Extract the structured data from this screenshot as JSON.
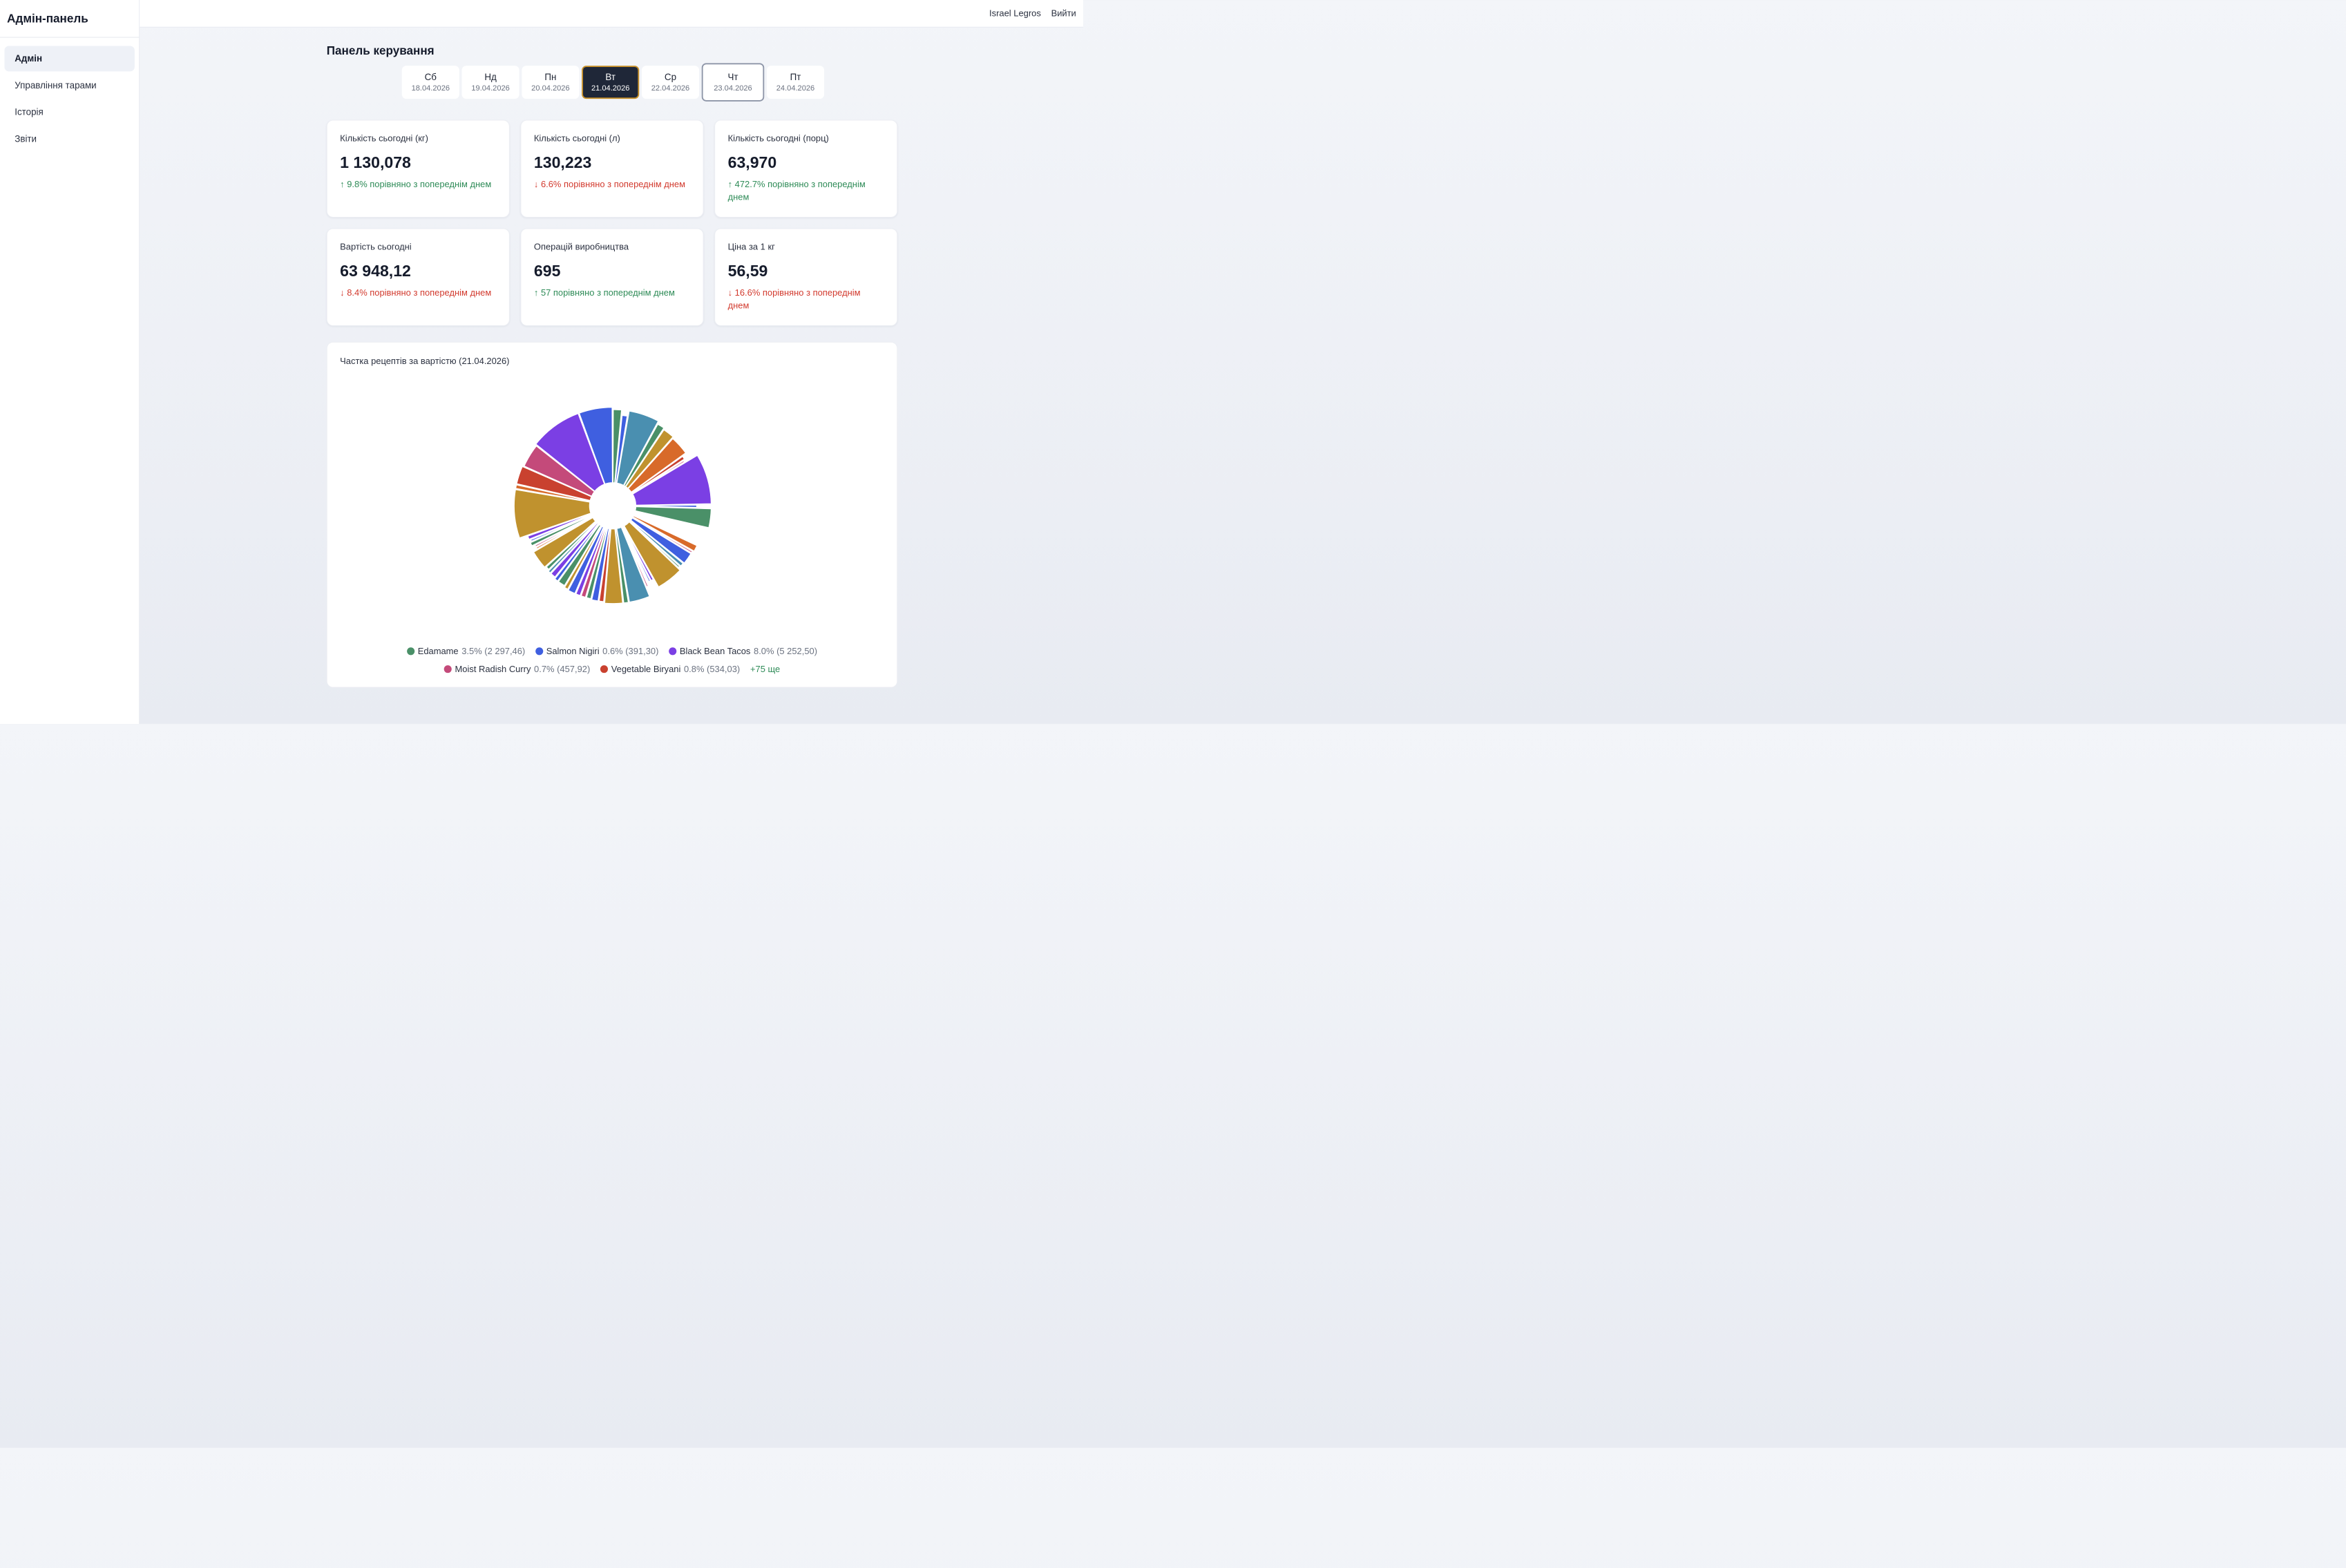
{
  "app": {
    "title": "Адмін-панель"
  },
  "sidebar": {
    "items": [
      {
        "label": "Адмін",
        "active": true
      },
      {
        "label": "Управління тарами"
      },
      {
        "label": "Історія"
      },
      {
        "label": "Звіти"
      }
    ]
  },
  "header": {
    "user": "Israel Legros",
    "logout": "Вийти"
  },
  "page": {
    "title": "Панель керування"
  },
  "days": [
    {
      "name": "Сб",
      "date": "18.04.2026"
    },
    {
      "name": "Нд",
      "date": "19.04.2026"
    },
    {
      "name": "Пн",
      "date": "20.04.2026"
    },
    {
      "name": "Вт",
      "date": "21.04.2026",
      "selected": true
    },
    {
      "name": "Ср",
      "date": "22.04.2026"
    },
    {
      "name": "Чт",
      "date": "23.04.2026",
      "today": true
    },
    {
      "name": "Пт",
      "date": "24.04.2026"
    }
  ],
  "cards": [
    {
      "label": "Кількість сьогодні (кг)",
      "value": "1 130,078",
      "delta": "↑ 9.8% порівняно з попереднім днем",
      "trend": "up"
    },
    {
      "label": "Кількість сьогодні (л)",
      "value": "130,223",
      "delta": "↓ 6.6% порівняно з попереднім днем",
      "trend": "down"
    },
    {
      "label": "Кількість сьогодні (порц)",
      "value": "63,970",
      "delta": "↑ 472.7% порівняно з попереднім днем",
      "trend": "up"
    },
    {
      "label": "Вартість сьогодні",
      "value": "63 948,12",
      "delta": "↓ 8.4% порівняно з попереднім днем",
      "trend": "down"
    },
    {
      "label": "Операцій виробництва",
      "value": "695",
      "delta": "↑ 57 порівняно з попереднім днем",
      "trend": "up"
    },
    {
      "label": "Ціна за 1 кг",
      "value": "56,59",
      "delta": "↓ 16.6% порівняно з попереднім днем",
      "trend": "down"
    }
  ],
  "chart": {
    "title": "Частка рецептів за вартістю (21.04.2026)",
    "legend": [
      {
        "name": "Edamame",
        "meta": "3.5% (2 297,46)",
        "color": "#4a9068"
      },
      {
        "name": "Salmon Nigiri",
        "meta": "0.6% (391,30)",
        "color": "#3f5fe0"
      },
      {
        "name": "Black Bean Tacos",
        "meta": "8.0% (5 252,50)",
        "color": "#7b3fe4"
      },
      {
        "name": "Moist Radish Curry",
        "meta": "0.7% (457,92)",
        "color": "#c44a7a"
      },
      {
        "name": "Vegetable Biryani",
        "meta": "0.8% (534,03)",
        "color": "#c9412f"
      }
    ],
    "more": "+75 ще"
  },
  "chart_data": {
    "type": "pie",
    "title": "Частка рецептів за вартістю (21.04.2026)",
    "categories": [
      "Edamame",
      "Salmon Nigiri",
      "Black Bean Tacos",
      "Moist Radish Curry",
      "Vegetable Biryani"
    ],
    "values": [
      3.5,
      0.6,
      8.0,
      0.7,
      0.8
    ],
    "amounts": [
      "2 297,46",
      "391,30",
      "5 252,50",
      "457,92",
      "534,03"
    ],
    "other_count": 75
  },
  "pie_slices": [
    {
      "r": 0.96,
      "c": "#4a9068",
      "v": 1.0
    },
    {
      "r": 0.89,
      "c": "#3f5fe0",
      "v": 0.7
    },
    {
      "r": 0.96,
      "c": "#4a8fb0",
      "v": 3.4
    },
    {
      "r": 0.92,
      "c": "#4a9068",
      "v": 0.9
    },
    {
      "r": 0.9,
      "c": "#c0922e",
      "v": 1.4
    },
    {
      "r": 0.88,
      "c": "#d86a2a",
      "v": 2.3
    },
    {
      "r": 0.82,
      "c": "#c9412f",
      "v": 0.5
    },
    {
      "r": 0.8,
      "c": "#c44a7a",
      "v": 0.3
    },
    {
      "r": 0.99,
      "c": "#7b3fe4",
      "v": 5.4
    },
    {
      "r": 0.8,
      "c": "#3f5fe0",
      "v": 0.4
    },
    {
      "r": 0.99,
      "c": "#4a9068",
      "v": 2.1
    },
    {
      "r": 0.0,
      "c": "#ffffff",
      "v": 1.9
    },
    {
      "r": 0.97,
      "c": "#4a9068",
      "v": 0.2
    },
    {
      "r": 0.92,
      "c": "#d86a2a",
      "v": 0.8
    },
    {
      "r": 0.9,
      "c": "#c44a7a",
      "v": 0.3
    },
    {
      "r": 0.9,
      "c": "#3f5fe0",
      "v": 1.4
    },
    {
      "r": 0.89,
      "c": "#4a8fb0",
      "v": 0.5
    },
    {
      "r": 0.88,
      "c": "#4a9068",
      "v": 0.3
    },
    {
      "r": 0.92,
      "c": "#c0922e",
      "v": 3.1
    },
    {
      "r": 0.8,
      "c": "#7b3fe4",
      "v": 0.4
    },
    {
      "r": 0.8,
      "c": "#3f5fe0",
      "v": 0.3
    },
    {
      "r": 0.84,
      "c": "#4a9068",
      "v": 0.2
    },
    {
      "r": 0.85,
      "c": "#c44a7a",
      "v": 0.3
    },
    {
      "r": 0.98,
      "c": "#4a8fb0",
      "v": 2.3
    },
    {
      "r": 0.98,
      "c": "#4a9068",
      "v": 0.6
    },
    {
      "r": 0.98,
      "c": "#c0922e",
      "v": 2.0
    },
    {
      "r": 0.96,
      "c": "#c9412f",
      "v": 0.6
    },
    {
      "r": 0.96,
      "c": "#3f5fe0",
      "v": 0.8
    },
    {
      "r": 0.95,
      "c": "#4a9068",
      "v": 0.6
    },
    {
      "r": 0.95,
      "c": "#c44a7a",
      "v": 0.6
    },
    {
      "r": 0.95,
      "c": "#7b3fe4",
      "v": 0.6
    },
    {
      "r": 0.95,
      "c": "#3f5fe0",
      "v": 0.9
    },
    {
      "r": 0.94,
      "c": "#c0922e",
      "v": 0.5
    },
    {
      "r": 0.92,
      "c": "#4a9068",
      "v": 0.9
    },
    {
      "r": 0.92,
      "c": "#3f5fe0",
      "v": 0.5
    },
    {
      "r": 0.9,
      "c": "#7b3fe4",
      "v": 0.7
    },
    {
      "r": 0.9,
      "c": "#4a8fb0",
      "v": 0.4
    },
    {
      "r": 0.88,
      "c": "#4a9068",
      "v": 0.5
    },
    {
      "r": 0.9,
      "c": "#c0922e",
      "v": 2.2
    },
    {
      "r": 0.84,
      "c": "#d86a2a",
      "v": 0.3
    },
    {
      "r": 0.84,
      "c": "#c44a7a",
      "v": 0.3
    },
    {
      "r": 0.88,
      "c": "#4a9068",
      "v": 0.5
    },
    {
      "r": 0.86,
      "c": "#3f5fe0",
      "v": 0.3
    },
    {
      "r": 0.88,
      "c": "#7b3fe4",
      "v": 0.5
    },
    {
      "r": 0.99,
      "c": "#c0922e",
      "v": 5.2
    },
    {
      "r": 0.99,
      "c": "#d86a2a",
      "v": 0.5
    },
    {
      "r": 0.99,
      "c": "#c9412f",
      "v": 2.0
    },
    {
      "r": 0.97,
      "c": "#c44a7a",
      "v": 2.6
    },
    {
      "r": 0.99,
      "c": "#7b3fe4",
      "v": 5.6
    },
    {
      "r": 0.99,
      "c": "#3f5fe0",
      "v": 3.6
    }
  ]
}
